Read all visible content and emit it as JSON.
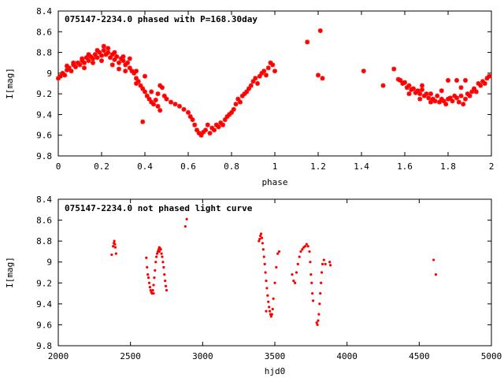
{
  "chart_data": [
    {
      "type": "scatter",
      "title": "075147-2234.0 phased with P=168.30day",
      "xlabel": "phase",
      "ylabel": "I[mag]",
      "xlim": [
        0,
        2
      ],
      "ylim": [
        8.4,
        9.8
      ],
      "y_inverted": true,
      "grid": false,
      "marker": "star",
      "color": "#ff0000",
      "x_ticks": [
        "0",
        "0.2",
        "0.4",
        "0.6",
        "0.8",
        "1",
        "1.2",
        "1.4",
        "1.6",
        "1.8",
        "2"
      ],
      "y_ticks": [
        "8.4",
        "8.6",
        "8.8",
        "9",
        "9.2",
        "9.4",
        "9.6",
        "9.8"
      ],
      "points": [
        [
          0.0,
          9.05
        ],
        [
          0.01,
          9.03
        ],
        [
          0.02,
          9.0
        ],
        [
          0.03,
          9.02
        ],
        [
          0.04,
          8.97
        ],
        [
          0.05,
          8.95
        ],
        [
          0.06,
          8.98
        ],
        [
          0.07,
          8.92
        ],
        [
          0.08,
          8.94
        ],
        [
          0.09,
          8.9
        ],
        [
          0.1,
          8.92
        ],
        [
          0.11,
          8.88
        ],
        [
          0.12,
          8.9
        ],
        [
          0.13,
          8.85
        ],
        [
          0.14,
          8.88
        ],
        [
          0.15,
          8.84
        ],
        [
          0.16,
          8.86
        ],
        [
          0.17,
          8.82
        ],
        [
          0.18,
          8.85
        ],
        [
          0.19,
          8.8
        ],
        [
          0.2,
          8.83
        ],
        [
          0.21,
          8.78
        ],
        [
          0.22,
          8.82
        ],
        [
          0.23,
          8.8
        ],
        [
          0.24,
          8.85
        ],
        [
          0.25,
          8.82
        ],
        [
          0.26,
          8.87
        ],
        [
          0.27,
          8.84
        ],
        [
          0.28,
          8.9
        ],
        [
          0.29,
          8.86
        ],
        [
          0.3,
          8.88
        ],
        [
          0.31,
          8.92
        ],
        [
          0.32,
          8.9
        ],
        [
          0.33,
          8.95
        ],
        [
          0.34,
          8.98
        ],
        [
          0.35,
          9.0
        ],
        [
          0.36,
          9.05
        ],
        [
          0.37,
          9.08
        ],
        [
          0.38,
          9.12
        ],
        [
          0.39,
          9.15
        ],
        [
          0.4,
          9.18
        ],
        [
          0.41,
          9.22
        ],
        [
          0.42,
          9.25
        ],
        [
          0.43,
          9.28
        ],
        [
          0.44,
          9.3
        ],
        [
          0.45,
          9.26
        ],
        [
          0.46,
          9.2
        ],
        [
          0.47,
          9.12
        ],
        [
          0.48,
          9.14
        ],
        [
          0.49,
          9.22
        ],
        [
          0.5,
          9.25
        ],
        [
          0.52,
          9.28
        ],
        [
          0.54,
          9.3
        ],
        [
          0.56,
          9.32
        ],
        [
          0.58,
          9.35
        ],
        [
          0.6,
          9.38
        ],
        [
          0.61,
          9.42
        ],
        [
          0.62,
          9.45
        ],
        [
          0.63,
          9.5
        ],
        [
          0.64,
          9.55
        ],
        [
          0.65,
          9.58
        ],
        [
          0.66,
          9.6
        ],
        [
          0.67,
          9.57
        ],
        [
          0.68,
          9.55
        ],
        [
          0.69,
          9.5
        ],
        [
          0.7,
          9.58
        ],
        [
          0.71,
          9.53
        ],
        [
          0.72,
          9.55
        ],
        [
          0.73,
          9.5
        ],
        [
          0.74,
          9.52
        ],
        [
          0.75,
          9.48
        ],
        [
          0.76,
          9.5
        ],
        [
          0.77,
          9.45
        ],
        [
          0.78,
          9.42
        ],
        [
          0.79,
          9.4
        ],
        [
          0.8,
          9.38
        ],
        [
          0.81,
          9.35
        ],
        [
          0.82,
          9.3
        ],
        [
          0.83,
          9.25
        ],
        [
          0.84,
          9.28
        ],
        [
          0.85,
          9.22
        ],
        [
          0.86,
          9.2
        ],
        [
          0.87,
          9.18
        ],
        [
          0.88,
          9.15
        ],
        [
          0.89,
          9.12
        ],
        [
          0.9,
          9.08
        ],
        [
          0.91,
          9.05
        ],
        [
          0.92,
          9.1
        ],
        [
          0.93,
          9.03
        ],
        [
          0.94,
          9.0
        ],
        [
          0.95,
          8.98
        ],
        [
          0.96,
          9.02
        ],
        [
          0.97,
          8.95
        ],
        [
          0.98,
          8.9
        ],
        [
          0.99,
          8.92
        ],
        [
          1.0,
          8.98
        ],
        [
          0.04,
          8.93
        ],
        [
          0.07,
          8.9
        ],
        [
          0.11,
          8.86
        ],
        [
          0.14,
          8.82
        ],
        [
          0.18,
          8.78
        ],
        [
          0.21,
          8.74
        ],
        [
          0.23,
          8.76
        ],
        [
          0.26,
          8.8
        ],
        [
          0.3,
          8.84
        ],
        [
          0.33,
          8.86
        ],
        [
          0.12,
          8.95
        ],
        [
          0.16,
          8.9
        ],
        [
          0.2,
          8.88
        ],
        [
          0.25,
          8.92
        ],
        [
          0.28,
          8.96
        ],
        [
          0.31,
          8.98
        ],
        [
          0.36,
          8.98
        ],
        [
          0.4,
          9.03
        ],
        [
          0.43,
          9.18
        ],
        [
          0.46,
          9.32
        ],
        [
          0.39,
          9.47
        ],
        [
          0.47,
          9.36
        ],
        [
          0.36,
          9.1
        ],
        [
          1.15,
          8.7
        ],
        [
          1.2,
          9.02
        ],
        [
          1.21,
          8.59
        ],
        [
          1.22,
          9.05
        ],
        [
          1.41,
          8.98
        ],
        [
          1.5,
          9.12
        ],
        [
          1.55,
          8.96
        ],
        [
          1.57,
          9.06
        ],
        [
          1.58,
          9.07
        ],
        [
          1.59,
          9.1
        ],
        [
          1.6,
          9.09
        ],
        [
          1.61,
          9.14
        ],
        [
          1.62,
          9.12
        ],
        [
          1.63,
          9.16
        ],
        [
          1.64,
          9.15
        ],
        [
          1.65,
          9.19
        ],
        [
          1.66,
          9.17
        ],
        [
          1.67,
          9.2
        ],
        [
          1.68,
          9.16
        ],
        [
          1.69,
          9.22
        ],
        [
          1.7,
          9.2
        ],
        [
          1.71,
          9.24
        ],
        [
          1.72,
          9.2
        ],
        [
          1.73,
          9.25
        ],
        [
          1.74,
          9.27
        ],
        [
          1.75,
          9.22
        ],
        [
          1.76,
          9.28
        ],
        [
          1.77,
          9.25
        ],
        [
          1.78,
          9.27
        ],
        [
          1.79,
          9.3
        ],
        [
          1.8,
          9.25
        ],
        [
          1.81,
          9.24
        ],
        [
          1.82,
          9.27
        ],
        [
          1.83,
          9.22
        ],
        [
          1.84,
          9.24
        ],
        [
          1.85,
          9.28
        ],
        [
          1.86,
          9.22
        ],
        [
          1.87,
          9.3
        ],
        [
          1.88,
          9.25
        ],
        [
          1.89,
          9.2
        ],
        [
          1.9,
          9.22
        ],
        [
          1.91,
          9.18
        ],
        [
          1.92,
          9.15
        ],
        [
          1.93,
          9.18
        ],
        [
          1.94,
          9.1
        ],
        [
          1.95,
          9.12
        ],
        [
          1.96,
          9.08
        ],
        [
          1.97,
          9.1
        ],
        [
          1.98,
          9.05
        ],
        [
          1.99,
          9.03
        ],
        [
          1.62,
          9.2
        ],
        [
          1.67,
          9.25
        ],
        [
          1.72,
          9.28
        ],
        [
          1.8,
          9.07
        ],
        [
          1.84,
          9.07
        ],
        [
          1.88,
          9.07
        ],
        [
          1.86,
          9.14
        ],
        [
          1.77,
          9.17
        ],
        [
          1.68,
          9.12
        ]
      ]
    },
    {
      "type": "scatter",
      "title": "075147-2234.0 not phased light curve",
      "xlabel": "hjd0",
      "ylabel": "I[mag]",
      "xlim": [
        2000,
        5000
      ],
      "ylim": [
        8.4,
        9.8
      ],
      "y_inverted": true,
      "grid": false,
      "marker": "dot",
      "color": "#ff0000",
      "x_ticks": [
        "2000",
        "2500",
        "3000",
        "3500",
        "4000",
        "4500",
        "5000"
      ],
      "y_ticks": [
        "8.4",
        "8.6",
        "8.8",
        "9",
        "9.2",
        "9.4",
        "9.6",
        "9.8"
      ],
      "points": [
        [
          2370,
          8.93
        ],
        [
          2380,
          8.85
        ],
        [
          2385,
          8.82
        ],
        [
          2388,
          8.8
        ],
        [
          2392,
          8.83
        ],
        [
          2395,
          8.86
        ],
        [
          2400,
          8.92
        ],
        [
          2610,
          8.96
        ],
        [
          2615,
          9.05
        ],
        [
          2620,
          9.12
        ],
        [
          2625,
          9.15
        ],
        [
          2630,
          9.2
        ],
        [
          2635,
          9.24
        ],
        [
          2640,
          9.27
        ],
        [
          2645,
          9.29
        ],
        [
          2650,
          9.3
        ],
        [
          2655,
          9.27
        ],
        [
          2660,
          9.22
        ],
        [
          2665,
          9.15
        ],
        [
          2670,
          9.08
        ],
        [
          2675,
          9.0
        ],
        [
          2680,
          8.95
        ],
        [
          2685,
          8.92
        ],
        [
          2690,
          8.9
        ],
        [
          2695,
          8.88
        ],
        [
          2700,
          8.86
        ],
        [
          2705,
          8.87
        ],
        [
          2710,
          8.88
        ],
        [
          2715,
          8.92
        ],
        [
          2720,
          8.95
        ],
        [
          2725,
          9.0
        ],
        [
          2730,
          9.05
        ],
        [
          2735,
          9.12
        ],
        [
          2740,
          9.18
        ],
        [
          2745,
          9.23
        ],
        [
          2750,
          9.27
        ],
        [
          2660,
          9.3
        ],
        [
          2700,
          8.9
        ],
        [
          2880,
          8.66
        ],
        [
          2890,
          8.59
        ],
        [
          3390,
          8.8
        ],
        [
          3395,
          8.78
        ],
        [
          3400,
          8.75
        ],
        [
          3405,
          8.73
        ],
        [
          3410,
          8.77
        ],
        [
          3415,
          8.82
        ],
        [
          3420,
          8.88
        ],
        [
          3425,
          8.95
        ],
        [
          3430,
          9.02
        ],
        [
          3435,
          9.1
        ],
        [
          3440,
          9.18
        ],
        [
          3445,
          9.25
        ],
        [
          3450,
          9.32
        ],
        [
          3455,
          9.38
        ],
        [
          3460,
          9.43
        ],
        [
          3465,
          9.47
        ],
        [
          3470,
          9.5
        ],
        [
          3475,
          9.52
        ],
        [
          3480,
          9.5
        ],
        [
          3485,
          9.45
        ],
        [
          3490,
          9.35
        ],
        [
          3500,
          9.2
        ],
        [
          3510,
          9.05
        ],
        [
          3520,
          8.92
        ],
        [
          3530,
          8.9
        ],
        [
          3440,
          9.47
        ],
        [
          3620,
          9.12
        ],
        [
          3630,
          9.18
        ],
        [
          3640,
          9.2
        ],
        [
          3650,
          9.1
        ],
        [
          3660,
          9.02
        ],
        [
          3670,
          8.95
        ],
        [
          3680,
          8.9
        ],
        [
          3690,
          8.88
        ],
        [
          3700,
          8.86
        ],
        [
          3710,
          8.85
        ],
        [
          3720,
          8.83
        ],
        [
          3730,
          8.85
        ],
        [
          3740,
          8.9
        ],
        [
          3745,
          9.0
        ],
        [
          3750,
          9.12
        ],
        [
          3755,
          9.2
        ],
        [
          3760,
          9.3
        ],
        [
          3765,
          9.37
        ],
        [
          3790,
          9.58
        ],
        [
          3795,
          9.6
        ],
        [
          3800,
          9.56
        ],
        [
          3805,
          9.5
        ],
        [
          3810,
          9.4
        ],
        [
          3815,
          9.3
        ],
        [
          3820,
          9.2
        ],
        [
          3825,
          9.1
        ],
        [
          3830,
          9.02
        ],
        [
          3840,
          8.98
        ],
        [
          3850,
          9.02
        ],
        [
          3880,
          9.0
        ],
        [
          3885,
          9.03
        ],
        [
          4600,
          8.98
        ],
        [
          4615,
          9.12
        ]
      ]
    }
  ]
}
